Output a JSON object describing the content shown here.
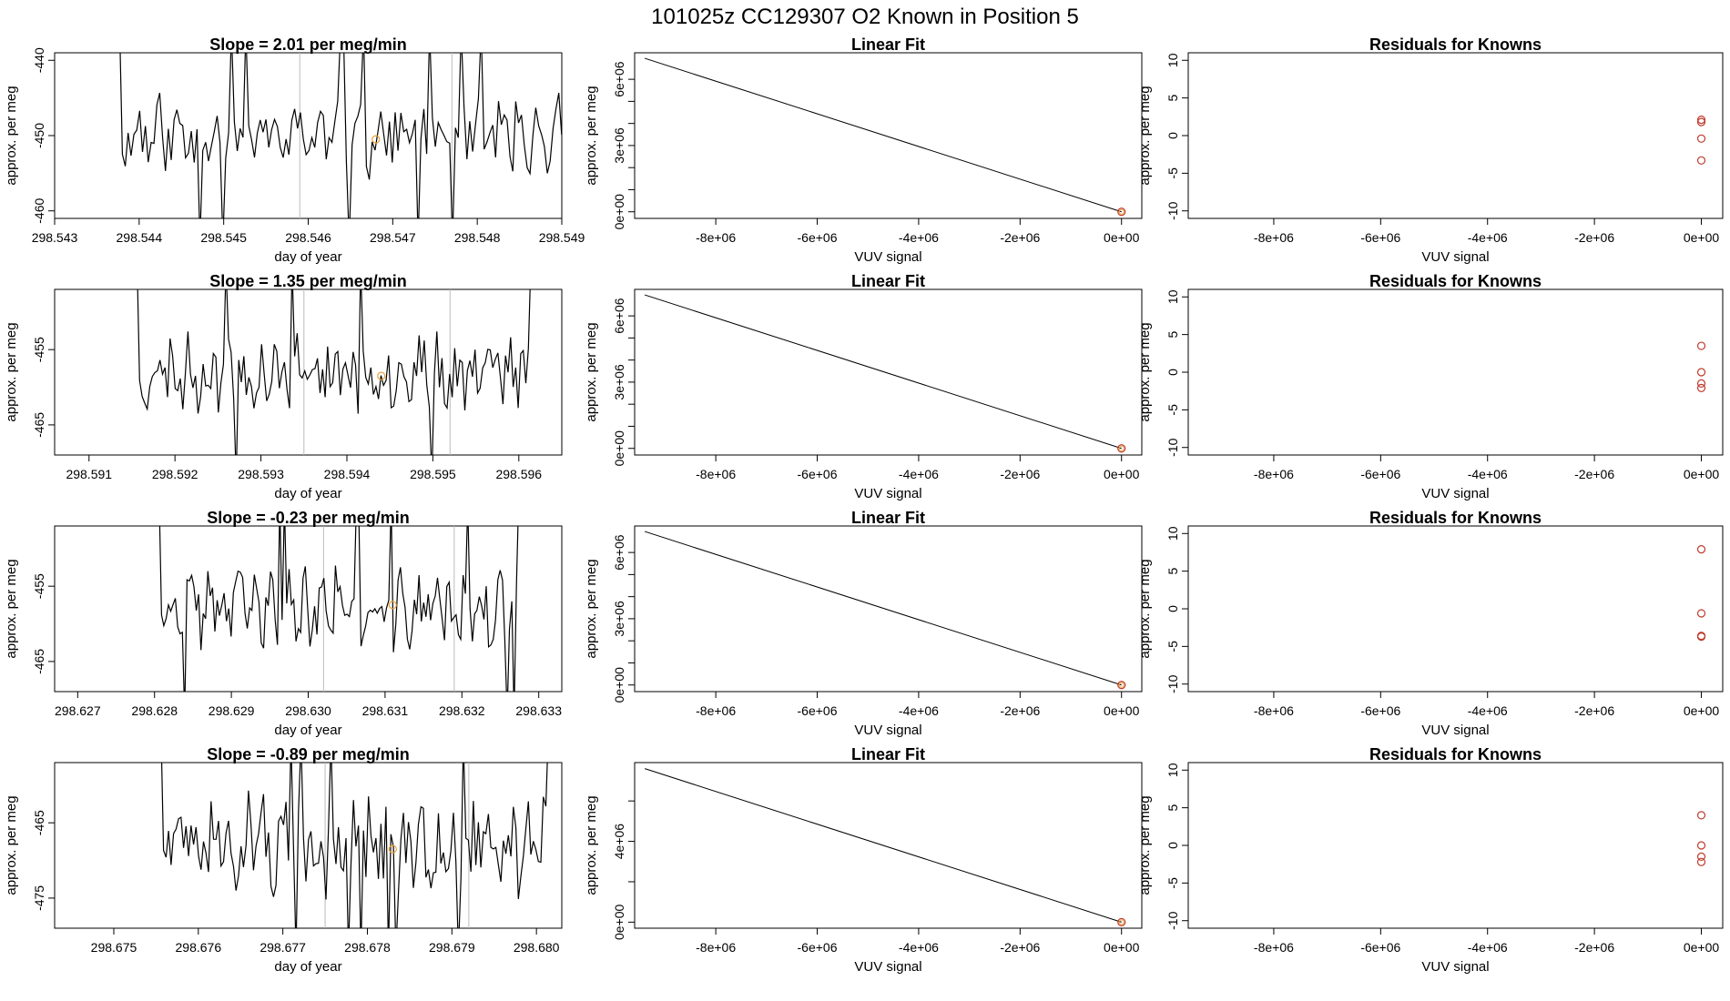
{
  "title": "101025z      CC129307   O2 Known in Position  5",
  "colors": {
    "line": "#000000",
    "guide": "#bbbbbb",
    "known": "#e8a23a",
    "resid": "#c0392b"
  },
  "rows": [
    {
      "timeseries": {
        "title": "Slope =  2.01  per meg/min",
        "xlabel": "day of year",
        "ylabel": "approx. per meg",
        "xlim": [
          298.543,
          298.549
        ],
        "xticks": [
          "298.543",
          "298.544",
          "298.545",
          "298.546",
          "298.547",
          "298.548",
          "298.549"
        ],
        "ylim": [
          -461,
          -439
        ],
        "yticks": [
          "-440",
          "-450",
          "-460"
        ],
        "start": 298.5437,
        "end": 298.5491,
        "base": -450,
        "amp": 4,
        "seed": 11,
        "guides": [
          298.5459,
          298.5477
        ],
        "known": {
          "x": 298.5468,
          "y": -450.5
        }
      },
      "fit": {
        "title": "Linear Fit",
        "xlabel": "VUV signal",
        "ylabel": "approx. per meg",
        "xlim": [
          -9600000.0,
          400000.0
        ],
        "xticks": [
          "-8e+06",
          "-6e+06",
          "-4e+06",
          "-2e+06",
          "0e+00"
        ],
        "ylim": [
          -300000.0,
          7200000.0
        ],
        "yticks": [
          "0e+00",
          "3e+06",
          "6e+06"
        ],
        "yticks_minor": [
          1000000.0,
          2000000.0,
          4000000.0,
          5000000.0
        ],
        "line": {
          "x": [
            -9400000.0,
            0
          ],
          "y": [
            6950000.0,
            0
          ]
        },
        "points": [
          {
            "x": 0,
            "y": 0
          }
        ]
      },
      "resid": {
        "title": "Residuals for Knowns",
        "xlabel": "VUV signal",
        "ylabel": "approx. per meg",
        "xlim": [
          -9600000.0,
          400000.0
        ],
        "xticks": [
          "-8e+06",
          "-6e+06",
          "-4e+06",
          "-2e+06",
          "0e+00"
        ],
        "ylim": [
          -11,
          11
        ],
        "yticks": [
          "-10",
          "-5",
          "0",
          "5",
          "10"
        ],
        "points": [
          {
            "x": 0,
            "y": 2.1
          },
          {
            "x": 0,
            "y": 1.8
          },
          {
            "x": 0,
            "y": -0.4
          },
          {
            "x": 0,
            "y": -3.3
          }
        ]
      }
    },
    {
      "timeseries": {
        "title": "Slope =  1.35  per meg/min",
        "xlabel": "day of year",
        "ylabel": "approx. per meg",
        "xlim": [
          298.5906,
          298.5965
        ],
        "xticks": [
          "298.591",
          "298.592",
          "298.593",
          "298.594",
          "298.595",
          "298.596"
        ],
        "ylim": [
          -469,
          -447
        ],
        "yticks": [
          "-455",
          "-465"
        ],
        "start": 298.5915,
        "end": 298.5962,
        "base": -458,
        "amp": 4,
        "seed": 23,
        "guides": [
          298.5935,
          298.5952
        ],
        "known": {
          "x": 298.5944,
          "y": -458.5
        }
      },
      "fit": {
        "title": "Linear Fit",
        "xlabel": "VUV signal",
        "ylabel": "approx. per meg",
        "xlim": [
          -9600000.0,
          400000.0
        ],
        "xticks": [
          "-8e+06",
          "-6e+06",
          "-4e+06",
          "-2e+06",
          "0e+00"
        ],
        "ylim": [
          -300000.0,
          7200000.0
        ],
        "yticks": [
          "0e+00",
          "3e+06",
          "6e+06"
        ],
        "yticks_minor": [
          1000000.0,
          2000000.0,
          4000000.0,
          5000000.0
        ],
        "line": {
          "x": [
            -9400000.0,
            0
          ],
          "y": [
            6950000.0,
            0
          ]
        },
        "points": [
          {
            "x": 0,
            "y": 0
          }
        ]
      },
      "resid": {
        "title": "Residuals for Knowns",
        "xlabel": "VUV signal",
        "ylabel": "approx. per meg",
        "xlim": [
          -9600000.0,
          400000.0
        ],
        "xticks": [
          "-8e+06",
          "-6e+06",
          "-4e+06",
          "-2e+06",
          "0e+00"
        ],
        "ylim": [
          -11,
          11
        ],
        "yticks": [
          "-10",
          "-5",
          "0",
          "5",
          "10"
        ],
        "points": [
          {
            "x": 0,
            "y": 3.5
          },
          {
            "x": 0,
            "y": 0.0
          },
          {
            "x": 0,
            "y": -1.5
          },
          {
            "x": 0,
            "y": -2.1
          }
        ]
      }
    },
    {
      "timeseries": {
        "title": "Slope =  -0.23  per meg/min",
        "xlabel": "day of year",
        "ylabel": "approx. per meg",
        "xlim": [
          298.6267,
          298.6333
        ],
        "xticks": [
          "298.627",
          "298.628",
          "298.629",
          "298.630",
          "298.631",
          "298.632",
          "298.633"
        ],
        "ylim": [
          -469,
          -447
        ],
        "yticks": [
          "-455",
          "-465"
        ],
        "start": 298.628,
        "end": 298.6328,
        "base": -458,
        "amp": 4,
        "seed": 37,
        "guides": [
          298.6302,
          298.6319
        ],
        "known": {
          "x": 298.6311,
          "y": -457.5
        }
      },
      "fit": {
        "title": "Linear Fit",
        "xlabel": "VUV signal",
        "ylabel": "approx. per meg",
        "xlim": [
          -9600000.0,
          400000.0
        ],
        "xticks": [
          "-8e+06",
          "-6e+06",
          "-4e+06",
          "-2e+06",
          "0e+00"
        ],
        "ylim": [
          -300000.0,
          7200000.0
        ],
        "yticks": [
          "0e+00",
          "3e+06",
          "6e+06"
        ],
        "yticks_minor": [
          1000000.0,
          2000000.0,
          4000000.0,
          5000000.0
        ],
        "line": {
          "x": [
            -9400000.0,
            0
          ],
          "y": [
            6950000.0,
            0
          ]
        },
        "points": [
          {
            "x": 0,
            "y": 0
          }
        ]
      },
      "resid": {
        "title": "Residuals for Knowns",
        "xlabel": "VUV signal",
        "ylabel": "approx. per meg",
        "xlim": [
          -9600000.0,
          400000.0
        ],
        "xticks": [
          "-8e+06",
          "-6e+06",
          "-4e+06",
          "-2e+06",
          "0e+00"
        ],
        "ylim": [
          -11,
          11
        ],
        "yticks": [
          "-10",
          "-5",
          "0",
          "5",
          "10"
        ],
        "points": [
          {
            "x": 0,
            "y": 7.9
          },
          {
            "x": 0,
            "y": -0.6
          },
          {
            "x": 0,
            "y": -3.6
          },
          {
            "x": 0,
            "y": -3.7
          }
        ]
      }
    },
    {
      "timeseries": {
        "title": "Slope =  -0.89  per meg/min",
        "xlabel": "day of year",
        "ylabel": "approx. per meg",
        "xlim": [
          298.6743,
          298.6803
        ],
        "xticks": [
          "298.675",
          "298.676",
          "298.677",
          "298.678",
          "298.679",
          "298.680"
        ],
        "ylim": [
          -479,
          -457
        ],
        "yticks": [
          "-465",
          "-475"
        ],
        "start": 298.6755,
        "end": 298.6802,
        "base": -468,
        "amp": 5,
        "seed": 51,
        "guides": [
          298.6775,
          298.6792
        ],
        "known": {
          "x": 298.6783,
          "y": -468.5
        }
      },
      "fit": {
        "title": "Linear Fit",
        "xlabel": "VUV signal",
        "ylabel": "approx. per meg",
        "xlim": [
          -9600000.0,
          400000.0
        ],
        "xticks": [
          "-8e+06",
          "-6e+06",
          "-4e+06",
          "-2e+06",
          "0e+00"
        ],
        "ylim": [
          -300000.0,
          7900000.0
        ],
        "yticks": [
          "0e+00",
          "4e+06"
        ],
        "yticks_minor": [
          2000000.0,
          6000000.0
        ],
        "line": {
          "x": [
            -9400000.0,
            0
          ],
          "y": [
            7600000.0,
            0
          ]
        },
        "points": [
          {
            "x": 0,
            "y": 0
          }
        ]
      },
      "resid": {
        "title": "Residuals for Knowns",
        "xlabel": "VUV signal",
        "ylabel": "approx. per meg",
        "xlim": [
          -9600000.0,
          400000.0
        ],
        "xticks": [
          "-8e+06",
          "-6e+06",
          "-4e+06",
          "-2e+06",
          "0e+00"
        ],
        "ylim": [
          -11,
          11
        ],
        "yticks": [
          "-10",
          "-5",
          "0",
          "5",
          "10"
        ],
        "points": [
          {
            "x": 0,
            "y": 4.0
          },
          {
            "x": 0,
            "y": 0.0
          },
          {
            "x": 0,
            "y": -1.5
          },
          {
            "x": 0,
            "y": -2.2
          }
        ]
      }
    }
  ]
}
